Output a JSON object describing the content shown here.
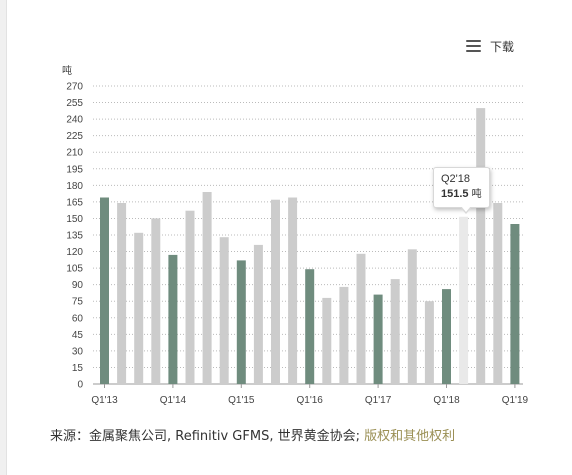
{
  "toolbar": {
    "download_label": "下载",
    "menu_icon": "hamburger-menu-icon"
  },
  "colors": {
    "dark_bar": "#6f8c7e",
    "light_bar": "#cccccc",
    "highlight_bar": "#e9e9e9",
    "grid": "#bbbbbb",
    "link": "#9a8f54"
  },
  "chart_data": {
    "type": "bar",
    "ylabel": "吨",
    "ylim": [
      0,
      270
    ],
    "yticks": [
      0,
      15,
      30,
      45,
      60,
      75,
      90,
      105,
      120,
      135,
      150,
      165,
      180,
      195,
      210,
      225,
      240,
      255,
      270
    ],
    "grid": true,
    "x_tick_labels": [
      "Q1'13",
      "Q1'14",
      "Q1'15",
      "Q1'16",
      "Q1'17",
      "Q1'18",
      "Q1'19"
    ],
    "categories": [
      "Q1'13",
      "Q2'13",
      "Q3'13",
      "Q4'13",
      "Q1'14",
      "Q2'14",
      "Q3'14",
      "Q4'14",
      "Q1'15",
      "Q2'15",
      "Q3'15",
      "Q4'15",
      "Q1'16",
      "Q2'16",
      "Q3'16",
      "Q4'16",
      "Q1'17",
      "Q2'17",
      "Q3'17",
      "Q4'17",
      "Q1'18",
      "Q2'18",
      "Q3'18",
      "Q4'18",
      "Q1'19"
    ],
    "values": [
      169,
      164,
      137,
      150,
      117,
      157,
      174,
      133,
      112,
      126,
      167,
      169,
      104,
      78,
      88,
      118,
      81,
      95,
      122,
      75,
      86,
      151.5,
      250,
      164,
      145
    ],
    "highlighted_index": 21,
    "tooltip": {
      "label": "Q2'18",
      "value": "151.5",
      "unit": "吨"
    }
  },
  "source": {
    "prefix": "来源：",
    "text": "金属聚焦公司, Refinitiv GFMS, 世界黄金协会; ",
    "link": "版权和其他权利"
  }
}
